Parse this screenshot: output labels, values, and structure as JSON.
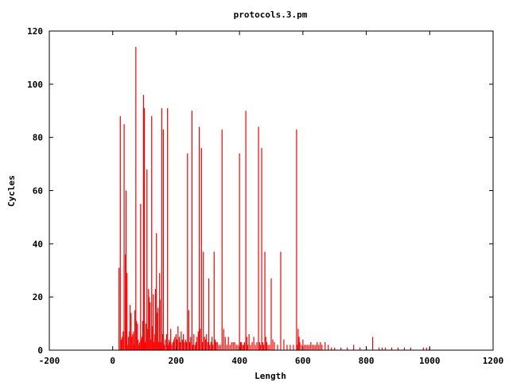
{
  "chart_data": {
    "type": "bar",
    "title": "protocols.3.pm",
    "xlabel": "Length",
    "ylabel": "Cycles",
    "xlim": [
      -200,
      1200
    ],
    "ylim": [
      0,
      120
    ],
    "xticks": [
      "-200",
      "0",
      "200",
      "400",
      "600",
      "800",
      "1000",
      "1200"
    ],
    "yticks": [
      "0",
      "20",
      "40",
      "60",
      "80",
      "100",
      "120"
    ],
    "bar_color": "#ff0000",
    "grid": false,
    "series": [
      {
        "x": [
          20,
          24,
          27,
          30,
          33,
          36,
          40,
          42,
          45,
          48,
          50,
          53,
          55,
          58,
          60,
          63,
          66,
          68,
          70,
          73,
          75,
          78,
          80,
          83,
          85,
          88,
          90,
          92,
          95,
          97,
          100,
          102,
          105,
          108,
          110,
          113,
          115,
          118,
          120,
          123,
          125,
          128,
          130,
          133,
          135,
          138,
          140,
          143,
          145,
          148,
          150,
          153,
          155,
          158,
          160,
          163,
          166,
          170,
          173,
          175,
          178,
          180,
          183,
          186,
          190,
          193,
          196,
          200,
          203,
          206,
          210,
          213,
          216,
          220,
          223,
          226,
          230,
          233,
          236,
          240,
          243,
          246,
          250,
          253,
          256,
          260,
          263,
          266,
          270,
          273,
          276,
          280,
          283,
          286,
          290,
          293,
          296,
          300,
          303,
          306,
          310,
          313,
          316,
          320,
          323,
          326,
          330,
          335,
          340,
          345,
          350,
          355,
          360,
          365,
          370,
          375,
          380,
          385,
          390,
          395,
          400,
          403,
          406,
          410,
          413,
          416,
          420,
          423,
          426,
          430,
          435,
          440,
          445,
          450,
          455,
          460,
          463,
          466,
          470,
          473,
          476,
          480,
          483,
          486,
          490,
          495,
          500,
          505,
          510,
          520,
          530,
          540,
          550,
          560,
          570,
          580,
          582,
          585,
          588,
          590,
          595,
          600,
          605,
          610,
          615,
          620,
          625,
          630,
          635,
          640,
          645,
          650,
          655,
          660,
          670,
          680,
          690,
          700,
          720,
          740,
          760,
          780,
          800,
          820,
          840,
          850,
          860,
          880,
          900,
          920,
          940,
          980,
          990,
          1000
        ],
        "y": [
          31,
          88,
          4,
          5,
          7,
          85,
          36,
          60,
          29,
          2,
          5,
          7,
          17,
          14,
          5,
          6,
          7,
          2,
          15,
          114,
          11,
          10,
          4,
          2,
          3,
          55,
          4,
          5,
          11,
          96,
          91,
          3,
          10,
          68,
          8,
          23,
          20,
          18,
          4,
          88,
          9,
          21,
          3,
          6,
          23,
          44,
          14,
          16,
          3,
          29,
          19,
          3,
          91,
          6,
          83,
          2,
          4,
          6,
          91,
          2,
          4,
          3,
          8,
          2,
          3,
          4,
          5,
          6,
          4,
          9,
          5,
          3,
          7,
          4,
          6,
          3,
          4,
          3,
          74,
          15,
          3,
          5,
          90,
          2,
          6,
          2,
          3,
          5,
          7,
          84,
          8,
          76,
          3,
          37,
          5,
          4,
          6,
          3,
          27,
          2,
          3,
          5,
          2,
          37,
          4,
          3,
          3,
          2,
          2,
          83,
          8,
          5,
          2,
          5,
          2,
          3,
          3,
          3,
          2,
          2,
          74,
          3,
          3,
          2,
          2,
          3,
          90,
          5,
          2,
          6,
          2,
          3,
          5,
          2,
          3,
          84,
          3,
          2,
          76,
          3,
          2,
          37,
          5,
          3,
          2,
          2,
          27,
          4,
          3,
          2,
          37,
          4,
          2,
          2,
          2,
          83,
          2,
          8,
          5,
          3,
          2,
          4,
          2,
          2,
          2,
          2,
          3,
          2,
          2,
          2,
          3,
          2,
          3,
          2,
          3,
          2,
          1,
          1,
          1,
          1,
          2,
          1,
          1,
          5,
          1,
          1,
          1,
          1,
          1,
          1,
          1,
          1,
          1,
          1
        ]
      }
    ]
  }
}
